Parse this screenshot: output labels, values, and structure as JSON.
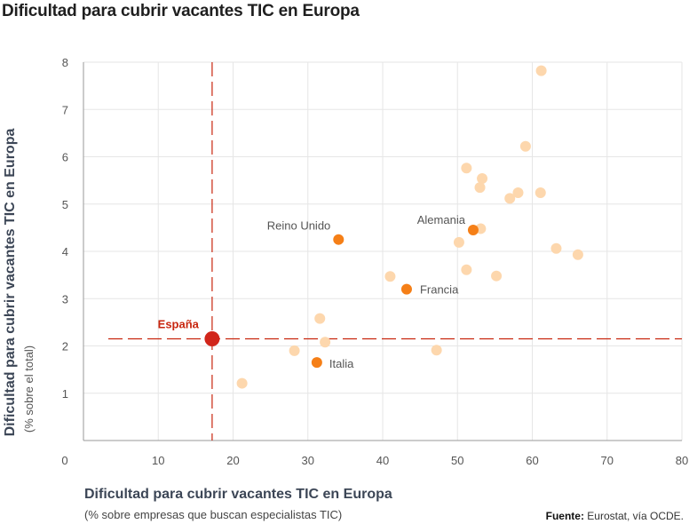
{
  "title": "Dificultad para cubrir vacantes TIC en Europa",
  "xlabel": "Dificultad para cubrir vacantes TIC en Europa",
  "xlabel_sub": "(% sobre empresas que buscan especialistas TIC)",
  "ylabel": "Dificultad para cubrir vacantes TIC en Europa",
  "ylabel_sub": "(% sobre el total)",
  "source_label": "Fuente:",
  "source_text": "Eurostat, vía OCDE.",
  "colors": {
    "light": "#fdd7ad",
    "highlight": "#f57f17",
    "spain": "#d1251a",
    "reference": "#c8260f"
  },
  "chart_data": {
    "type": "scatter",
    "xlim": [
      0,
      80
    ],
    "ylim": [
      0,
      8
    ],
    "xticks": [
      0,
      10,
      20,
      30,
      40,
      50,
      60,
      70,
      80
    ],
    "yticks": [
      1,
      2,
      3,
      4,
      5,
      6,
      7,
      8
    ],
    "grid": true,
    "reference_lines": {
      "x": 17.2,
      "y": 2.15
    },
    "labeled_points": [
      {
        "label": "España",
        "x": 17.2,
        "y": 2.15,
        "kind": "spain"
      },
      {
        "label": "Reino Unido",
        "x": 34.1,
        "y": 4.25,
        "kind": "highlight"
      },
      {
        "label": "Alemania",
        "x": 52.1,
        "y": 4.45,
        "kind": "highlight"
      },
      {
        "label": "Francia",
        "x": 43.2,
        "y": 3.2,
        "kind": "highlight"
      },
      {
        "label": "Italia",
        "x": 31.2,
        "y": 1.65,
        "kind": "highlight"
      }
    ],
    "other_points": [
      {
        "x": 61.2,
        "y": 7.82
      },
      {
        "x": 59.1,
        "y": 6.22
      },
      {
        "x": 51.2,
        "y": 5.76
      },
      {
        "x": 53.3,
        "y": 5.54
      },
      {
        "x": 53.0,
        "y": 5.35
      },
      {
        "x": 58.1,
        "y": 5.24
      },
      {
        "x": 61.1,
        "y": 5.24
      },
      {
        "x": 57.0,
        "y": 5.12
      },
      {
        "x": 53.1,
        "y": 4.48
      },
      {
        "x": 50.2,
        "y": 4.19
      },
      {
        "x": 63.2,
        "y": 4.06
      },
      {
        "x": 66.1,
        "y": 3.93
      },
      {
        "x": 51.2,
        "y": 3.61
      },
      {
        "x": 55.2,
        "y": 3.48
      },
      {
        "x": 41.0,
        "y": 3.47
      },
      {
        "x": 31.6,
        "y": 2.58
      },
      {
        "x": 32.3,
        "y": 2.08
      },
      {
        "x": 28.2,
        "y": 1.9
      },
      {
        "x": 47.2,
        "y": 1.91
      },
      {
        "x": 21.2,
        "y": 1.21
      }
    ]
  }
}
